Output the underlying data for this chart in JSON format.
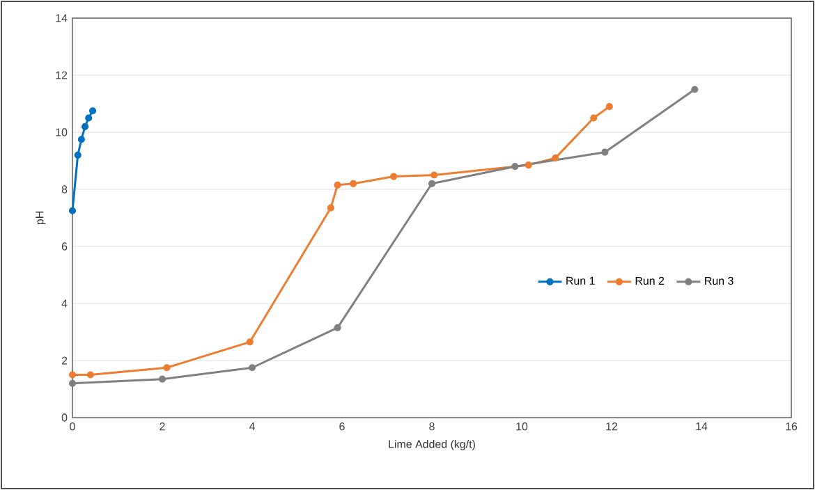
{
  "chart_data": {
    "type": "line",
    "xlabel": "Lime Added (kg/t)",
    "ylabel": "pH",
    "xlim": [
      0,
      16
    ],
    "xticks": [
      0,
      2,
      4,
      6,
      8,
      10,
      12,
      14,
      16
    ],
    "ylim": [
      0,
      14
    ],
    "yticks": [
      0,
      2,
      4,
      6,
      8,
      10,
      12,
      14
    ],
    "grid": "y",
    "legend": "bottom right",
    "marker": "circle",
    "line_style": "solid",
    "series": [
      {
        "name": "Run 1",
        "color": "#0070c0",
        "x": [
          0,
          0.12,
          0.2,
          0.28,
          0.36,
          0.45
        ],
        "values": [
          7.25,
          9.2,
          9.75,
          10.2,
          10.5,
          10.75
        ]
      },
      {
        "name": "Run 2",
        "color": "#ed7d31",
        "x": [
          0,
          0.4,
          2.1,
          3.95,
          5.75,
          5.9,
          6.25,
          7.15,
          8.05,
          10.15,
          10.75,
          11.6,
          11.95
        ],
        "values": [
          1.5,
          1.5,
          1.75,
          2.65,
          7.35,
          8.15,
          8.2,
          8.45,
          8.5,
          8.85,
          9.1,
          10.5,
          10.9
        ]
      },
      {
        "name": "Run 3",
        "color": "#808080",
        "x": [
          0,
          2,
          4,
          5.9,
          8,
          9.85,
          11.85,
          13.85
        ],
        "values": [
          1.2,
          1.35,
          1.75,
          3.15,
          8.2,
          8.8,
          9.3,
          11.5
        ]
      }
    ]
  }
}
